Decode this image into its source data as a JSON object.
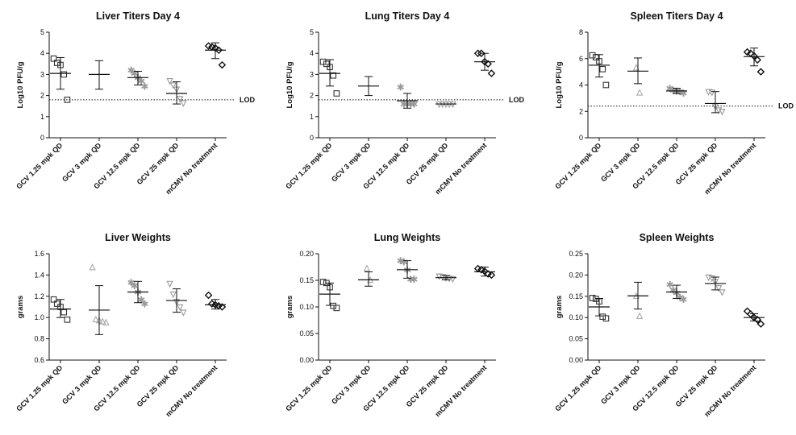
{
  "chart_data": [
    {
      "type": "scatter",
      "title": "Liver Titers Day 4",
      "ylabel": "Log10 PFU/g",
      "ylim": [
        0,
        5
      ],
      "yticks": [
        "0",
        "1",
        "2",
        "3",
        "4",
        "5"
      ],
      "categories": [
        "GCV 1.25 mpk QD",
        "GCV 3 mpk QD",
        "GCV 12.5 mpk QD",
        "GCV 25 mpk QD",
        "mCMV No treatment"
      ],
      "lod": {
        "label": "LOD",
        "value": 1.8
      },
      "groups": [
        {
          "mean": 3.05,
          "sd_low": 2.3,
          "sd_high": 3.8,
          "values": [
            3.75,
            3.55,
            3.45,
            3.0,
            1.8
          ]
        },
        {
          "mean": 3.0,
          "sd_low": 2.3,
          "sd_high": 3.65,
          "values": []
        },
        {
          "mean": 2.85,
          "sd_low": 2.5,
          "sd_high": 3.15,
          "values": [
            3.2,
            3.05,
            2.85,
            2.7,
            2.45
          ]
        },
        {
          "mean": 2.1,
          "sd_low": 1.6,
          "sd_high": 2.65,
          "values": [
            2.7,
            2.5,
            2.3,
            1.85,
            1.65
          ]
        },
        {
          "mean": 4.15,
          "sd_low": 3.75,
          "sd_high": 4.5,
          "values": [
            4.35,
            4.3,
            4.25,
            4.15,
            3.45
          ]
        }
      ]
    },
    {
      "type": "scatter",
      "title": "Lung Titers Day 4",
      "ylabel": "Log10 PFU/g",
      "ylim": [
        0,
        5
      ],
      "yticks": [
        "0",
        "1",
        "2",
        "3",
        "4",
        "5"
      ],
      "categories": [
        "GCV 1.25 mpk QD",
        "GCV 3 mpk QD",
        "GCV 12.5 mpk QD",
        "GCV 25 mpk QD",
        "mCMV No treatment"
      ],
      "lod": {
        "label": "LOD",
        "value": 1.8
      },
      "groups": [
        {
          "mean": 3.05,
          "sd_low": 2.45,
          "sd_high": 3.7,
          "values": [
            3.6,
            3.5,
            3.35,
            2.95,
            2.1
          ]
        },
        {
          "mean": 2.45,
          "sd_low": 2.0,
          "sd_high": 2.9,
          "values": []
        },
        {
          "mean": 1.75,
          "sd_low": 1.4,
          "sd_high": 2.1,
          "values": [
            2.4,
            1.6,
            1.6,
            1.6,
            1.6
          ]
        },
        {
          "mean": 1.6,
          "sd_low": 1.6,
          "sd_high": 1.6,
          "values": [
            1.6,
            1.6,
            1.6,
            1.6,
            1.6
          ]
        },
        {
          "mean": 3.6,
          "sd_low": 3.2,
          "sd_high": 4.0,
          "values": [
            4.0,
            4.0,
            3.6,
            3.5,
            3.05
          ]
        }
      ]
    },
    {
      "type": "scatter",
      "title": "Spleen Titers Day 4",
      "ylabel": "Log10 PFU/g",
      "ylim": [
        0,
        8
      ],
      "yticks": [
        "0",
        "2",
        "4",
        "6",
        "8"
      ],
      "categories": [
        "GCV 1.25 mpk QD",
        "GCV 3 mpk QD",
        "GCV 12.5 mpk QD",
        "GCV 25 mpk QD",
        "mCMV No treatment"
      ],
      "lod": {
        "label": "LOD",
        "value": 2.4
      },
      "groups": [
        {
          "mean": 5.5,
          "sd_low": 4.6,
          "sd_high": 6.3,
          "values": [
            6.25,
            6.1,
            5.8,
            5.2,
            4.0
          ]
        },
        {
          "mean": 5.05,
          "sd_low": 4.1,
          "sd_high": 6.05,
          "values": [
            5.3,
            3.4
          ]
        },
        {
          "mean": 3.55,
          "sd_low": 3.35,
          "sd_high": 3.75,
          "values": [
            3.75,
            3.6,
            3.55,
            3.5,
            3.4
          ]
        },
        {
          "mean": 2.6,
          "sd_low": 1.9,
          "sd_high": 3.5,
          "values": [
            3.5,
            3.45,
            2.4,
            2.1,
            2.0
          ]
        },
        {
          "mean": 6.15,
          "sd_low": 5.45,
          "sd_high": 6.8,
          "values": [
            6.5,
            6.4,
            6.2,
            5.9,
            5.0
          ]
        }
      ]
    },
    {
      "type": "scatter",
      "title": "Liver Weights",
      "ylabel": "grams",
      "ylim": [
        0.6,
        1.6
      ],
      "yticks": [
        "0.6",
        "0.8",
        "1.0",
        "1.2",
        "1.4",
        "1.6"
      ],
      "categories": [
        "GCV 1.25 mpk QD",
        "GCV 3 mpk QD",
        "GCV 12.5 mpk QD",
        "GCV 25 mpk QD",
        "mCMV No treatment"
      ],
      "groups": [
        {
          "mean": 1.08,
          "sd_low": 1.0,
          "sd_high": 1.17,
          "values": [
            1.17,
            1.13,
            1.1,
            1.05,
            0.98
          ]
        },
        {
          "mean": 1.07,
          "sd_low": 0.84,
          "sd_high": 1.3,
          "values": [
            1.47,
            0.98,
            0.97,
            0.96,
            0.95
          ]
        },
        {
          "mean": 1.24,
          "sd_low": 1.14,
          "sd_high": 1.34,
          "values": [
            1.33,
            1.3,
            1.24,
            1.17,
            1.13
          ]
        },
        {
          "mean": 1.16,
          "sd_low": 1.05,
          "sd_high": 1.27,
          "values": [
            1.32,
            1.22,
            1.15,
            1.1,
            1.05
          ]
        },
        {
          "mean": 1.12,
          "sd_low": 1.08,
          "sd_high": 1.17,
          "values": [
            1.21,
            1.13,
            1.12,
            1.11,
            1.1
          ]
        }
      ]
    },
    {
      "type": "scatter",
      "title": "Lung Weights",
      "ylabel": "grams",
      "ylim": [
        0,
        0.2
      ],
      "yticks": [
        "0.00",
        "0.05",
        "0.10",
        "0.15",
        "0.20"
      ],
      "categories": [
        "GCV 1.25 mpk QD",
        "GCV 3 mpk QD",
        "GCV 12.5 mpk QD",
        "GCV 25 mpk QD",
        "mCMV No treatment"
      ],
      "groups": [
        {
          "mean": 0.124,
          "sd_low": 0.103,
          "sd_high": 0.145,
          "values": [
            0.147,
            0.145,
            0.137,
            0.102,
            0.098
          ]
        },
        {
          "mean": 0.151,
          "sd_low": 0.139,
          "sd_high": 0.166,
          "values": [
            0.172,
            0.15
          ]
        },
        {
          "mean": 0.17,
          "sd_low": 0.154,
          "sd_high": 0.187,
          "values": [
            0.187,
            0.185,
            0.17,
            0.152,
            0.152
          ]
        },
        {
          "mean": 0.155,
          "sd_low": 0.151,
          "sd_high": 0.159,
          "values": [
            0.158,
            0.157,
            0.155,
            0.154,
            0.153
          ]
        },
        {
          "mean": 0.166,
          "sd_low": 0.158,
          "sd_high": 0.175,
          "values": [
            0.172,
            0.17,
            0.167,
            0.162,
            0.16
          ]
        }
      ]
    },
    {
      "type": "scatter",
      "title": "Spleen Weights",
      "ylabel": "grams",
      "ylim": [
        0,
        0.25
      ],
      "yticks": [
        "0.00",
        "0.05",
        "0.10",
        "0.15",
        "0.20",
        "0.25"
      ],
      "categories": [
        "GCV 1.25 mpk QD",
        "GCV 3 mpk QD",
        "GCV 12.5 mpk QD",
        "GCV 25 mpk QD",
        "mCMV No treatment"
      ],
      "groups": [
        {
          "mean": 0.125,
          "sd_low": 0.104,
          "sd_high": 0.145,
          "values": [
            0.146,
            0.144,
            0.138,
            0.102,
            0.098
          ]
        },
        {
          "mean": 0.151,
          "sd_low": 0.12,
          "sd_high": 0.183,
          "values": [
            0.15,
            0.103
          ]
        },
        {
          "mean": 0.16,
          "sd_low": 0.145,
          "sd_high": 0.176,
          "values": [
            0.178,
            0.165,
            0.158,
            0.148,
            0.143
          ]
        },
        {
          "mean": 0.18,
          "sd_low": 0.165,
          "sd_high": 0.195,
          "values": [
            0.195,
            0.193,
            0.185,
            0.17,
            0.16
          ]
        },
        {
          "mean": 0.1,
          "sd_low": 0.092,
          "sd_high": 0.109,
          "values": [
            0.115,
            0.108,
            0.1,
            0.095,
            0.085
          ]
        }
      ]
    }
  ],
  "styles": {
    "marker_shapes": [
      "square",
      "triangle-up",
      "star",
      "triangle-down",
      "diamond"
    ],
    "marker_colors": [
      "#333333",
      "#aaaaaa",
      "#999999",
      "#999999",
      "#111111"
    ],
    "axis_color": "#111111"
  }
}
